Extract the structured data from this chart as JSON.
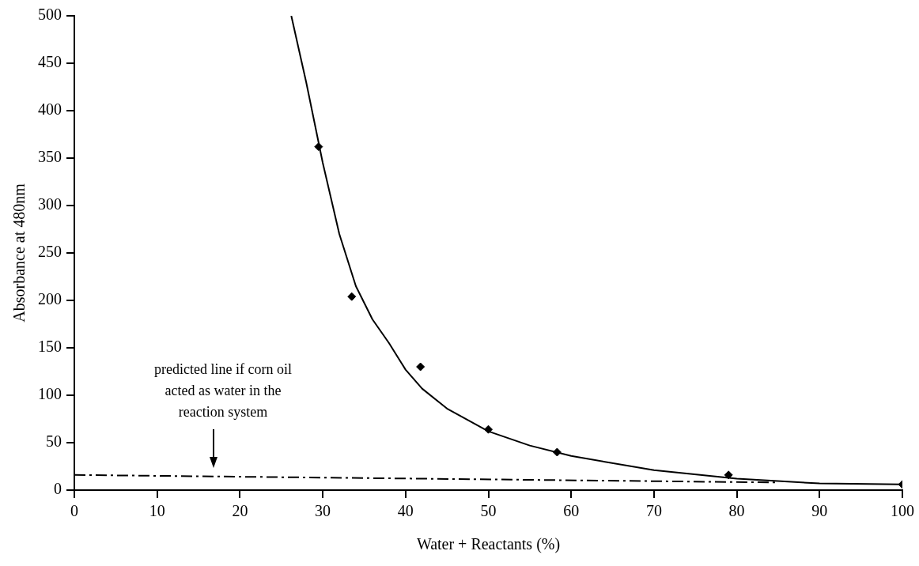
{
  "chart_data": {
    "type": "scatter",
    "xlabel": "Water + Reactants (%)",
    "ylabel": "Absorbance at 480nm",
    "xlim": [
      0,
      100
    ],
    "xticks": [
      0,
      10,
      20,
      30,
      40,
      50,
      60,
      70,
      80,
      90,
      100
    ],
    "ylim": [
      0,
      500
    ],
    "yticks": [
      0,
      50,
      100,
      150,
      200,
      250,
      300,
      350,
      400,
      450,
      500
    ],
    "grid": false,
    "legend": false,
    "series": [
      {
        "color": "#000000",
        "marker": "diamond",
        "x": [
          29.5,
          33.5,
          41.8,
          50,
          58.3,
          79,
          100
        ],
        "values": [
          362,
          204,
          130,
          64,
          40,
          16,
          6
        ]
      },
      {
        "type": "line",
        "color": "#000000",
        "marker": "none",
        "line_style": "solid",
        "x": [
          26.2,
          28,
          30,
          32,
          34,
          36,
          38,
          40,
          42,
          45,
          50,
          55,
          60,
          70,
          80,
          90,
          100
        ],
        "values": [
          500,
          430,
          345,
          270,
          215,
          180,
          155,
          127,
          107,
          86,
          62,
          47,
          36,
          21,
          12,
          7,
          6
        ]
      },
      {
        "type": "line",
        "color": "#000000",
        "marker": "none",
        "line_style": "dashed",
        "x": [
          0,
          85
        ],
        "values": [
          16,
          8
        ]
      }
    ],
    "annotations": [
      "predicted line if corn oil acted as water in the reaction system"
    ]
  }
}
